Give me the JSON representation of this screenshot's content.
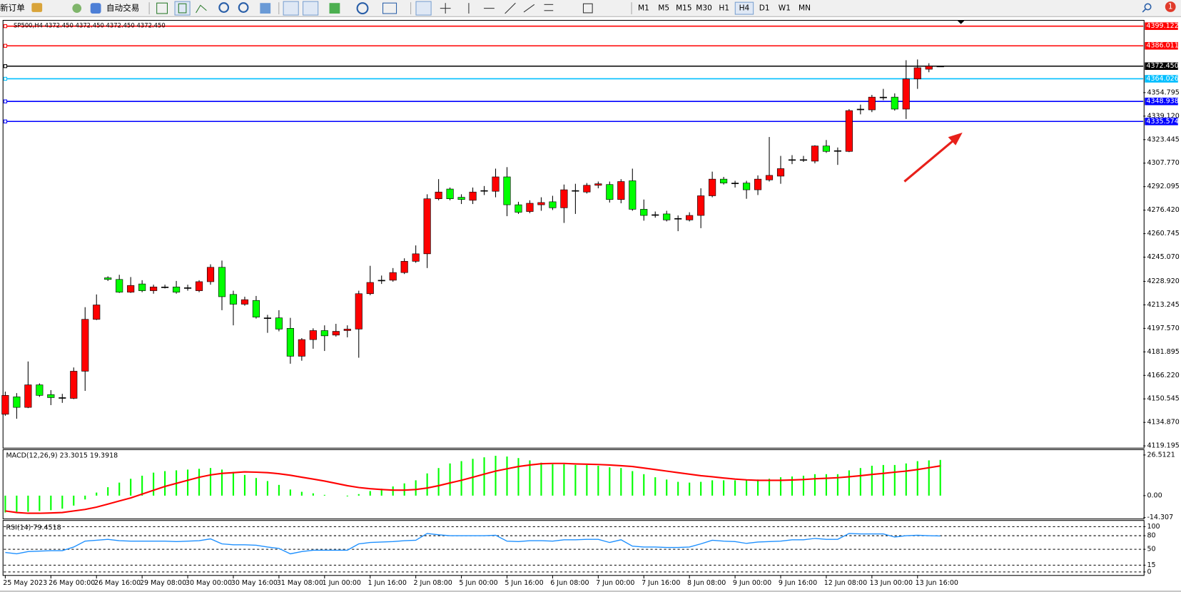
{
  "toolbar": {
    "new_order": "新订单",
    "auto_trading": "自动交易",
    "timeframes": [
      "M1",
      "M5",
      "M15",
      "M30",
      "H1",
      "H4",
      "D1",
      "W1",
      "MN"
    ],
    "active_timeframe": "H4",
    "notifications": 1
  },
  "chart_data": [
    {
      "type": "candlestick",
      "title": "SP500,H4  4372.450 4372.450 4372.450 4372.450",
      "categories": [
        "25 May 2023",
        null,
        null,
        null,
        "26 May 00:00",
        null,
        null,
        null,
        "26 May 16:00",
        null,
        null,
        null,
        "29 May 08:00",
        null,
        null,
        null,
        "30 May 00:00",
        null,
        null,
        null,
        "30 May 16:00",
        null,
        null,
        null,
        "31 May 08:00",
        null,
        null,
        null,
        "1 Jun 00:00",
        null,
        null,
        null,
        "1 Jun 16:00",
        null,
        null,
        null,
        "2 Jun 08:00",
        null,
        null,
        null,
        "5 Jun 00:00",
        null,
        null,
        null,
        "5 Jun 16:00",
        null,
        null,
        null,
        "6 Jun 08:00",
        null,
        null,
        null,
        "7 Jun 00:00",
        null,
        null,
        null,
        "7 Jun 16:00",
        null,
        null,
        null,
        "8 Jun 08:00",
        null,
        null,
        null,
        "9 Jun 00:00",
        null,
        null,
        null,
        "9 Jun 16:00",
        null,
        null,
        null,
        "12 Jun 08:00",
        null,
        null,
        null,
        "13 Jun 00:00",
        null,
        null,
        null,
        "13 Jun 16:00",
        null,
        null
      ],
      "open": [
        4140.3,
        4151.9,
        4144.9,
        4159.9,
        4153.4,
        4151.4,
        4150.9,
        4169.0,
        4203.6,
        4231.3,
        4230.2,
        4221.7,
        4227.2,
        4222.7,
        4225.2,
        4225.2,
        4224.7,
        4222.7,
        4228.7,
        4238.3,
        4220.2,
        4213.7,
        4216.2,
        4204.6,
        4204.6,
        4197.6,
        4179.0,
        4190.1,
        4196.1,
        4193.1,
        4196.1,
        4197.1,
        4220.7,
        4229.7,
        4229.7,
        4234.8,
        4242.3,
        4247.3,
        4284.0,
        4290.5,
        4285.0,
        4283.0,
        4289.5,
        4289.0,
        4298.6,
        4280.0,
        4275.5,
        4280.0,
        4282.0,
        4278.0,
        4289.5,
        4288.5,
        4293.0,
        4293.5,
        4283.5,
        4296.0,
        4277.0,
        4273.4,
        4273.9,
        4270.9,
        4269.9,
        4272.9,
        4286.0,
        4297.1,
        4294.5,
        4294.5,
        4290.0,
        4296.6,
        4299.1,
        4310.1,
        4310.1,
        4309.1,
        4319.2,
        4316.1,
        4315.6,
        4343.8,
        4343.3,
        4351.8,
        4351.8,
        4343.8,
        4363.9,
        4370.4,
        4372.45
      ],
      "high": [
        4155.4,
        4154.4,
        4175.5,
        4160.9,
        4156.4,
        4153.9,
        4171.5,
        4211.7,
        4220.2,
        4232.3,
        4233.3,
        4231.8,
        4229.7,
        4226.7,
        4226.7,
        4229.2,
        4226.7,
        4229.7,
        4240.3,
        4242.8,
        4222.7,
        4218.7,
        4219.2,
        4206.6,
        4209.7,
        4204.6,
        4191.1,
        4197.6,
        4199.6,
        4200.6,
        4199.6,
        4222.7,
        4239.3,
        4232.8,
        4237.8,
        4244.3,
        4252.9,
        4287.0,
        4297.1,
        4291.5,
        4287.0,
        4291.5,
        4292.5,
        4304.1,
        4305.1,
        4282.0,
        4283.0,
        4285.0,
        4286.0,
        4293.5,
        4294.0,
        4294.5,
        4295.5,
        4295.5,
        4297.1,
        4304.1,
        4283.5,
        4275.5,
        4276.0,
        4272.9,
        4275.0,
        4291.0,
        4302.1,
        4298.6,
        4296.0,
        4296.0,
        4299.6,
        4325.2,
        4312.6,
        4313.1,
        4312.6,
        4319.7,
        4323.2,
        4318.2,
        4343.8,
        4346.8,
        4353.3,
        4357.3,
        4354.3,
        4376.4,
        4376.9,
        4374.4,
        4372.45
      ],
      "low": [
        4139.3,
        4137.3,
        4144.4,
        4151.9,
        4146.4,
        4147.9,
        4150.4,
        4155.9,
        4203.1,
        4229.2,
        4221.2,
        4221.2,
        4221.7,
        4220.7,
        4224.2,
        4220.7,
        4222.7,
        4221.7,
        4226.7,
        4209.7,
        4199.6,
        4212.7,
        4204.1,
        4194.6,
        4195.6,
        4174.0,
        4176.0,
        4184.0,
        4182.5,
        4192.1,
        4191.6,
        4178.0,
        4219.7,
        4227.2,
        4228.7,
        4233.8,
        4241.3,
        4237.8,
        4283.0,
        4283.0,
        4280.5,
        4280.5,
        4286.5,
        4285.0,
        4272.4,
        4273.9,
        4274.4,
        4276.0,
        4276.5,
        4267.9,
        4273.9,
        4287.5,
        4291.0,
        4281.5,
        4281.0,
        4276.0,
        4269.4,
        4271.4,
        4268.9,
        4262.4,
        4268.9,
        4264.4,
        4285.0,
        4293.5,
        4291.5,
        4284.0,
        4286.5,
        4295.5,
        4294.0,
        4307.1,
        4308.6,
        4307.6,
        4314.6,
        4306.6,
        4315.1,
        4340.3,
        4341.8,
        4349.8,
        4342.8,
        4337.2,
        4357.3,
        4368.4,
        4372.45
      ],
      "close": [
        4152.9,
        4144.9,
        4159.9,
        4152.9,
        4151.4,
        4151.4,
        4169.0,
        4203.6,
        4213.2,
        4230.2,
        4221.7,
        4226.2,
        4222.7,
        4225.2,
        4225.2,
        4221.7,
        4224.7,
        4228.7,
        4238.3,
        4218.7,
        4213.7,
        4216.7,
        4205.1,
        4204.6,
        4197.1,
        4179.0,
        4190.1,
        4196.1,
        4192.6,
        4195.6,
        4197.1,
        4220.7,
        4228.2,
        4229.7,
        4234.8,
        4242.3,
        4247.3,
        4284.0,
        4288.5,
        4284.0,
        4283.5,
        4288.5,
        4289.5,
        4298.6,
        4280.0,
        4275.0,
        4281.0,
        4281.5,
        4278.0,
        4290.0,
        4289.5,
        4293.0,
        4294.0,
        4283.5,
        4295.5,
        4277.0,
        4272.9,
        4273.4,
        4269.9,
        4270.9,
        4272.9,
        4286.0,
        4297.1,
        4294.5,
        4294.5,
        4290.0,
        4297.1,
        4299.6,
        4304.1,
        4310.1,
        4310.1,
        4319.2,
        4315.6,
        4316.1,
        4342.8,
        4343.8,
        4351.8,
        4351.8,
        4343.8,
        4363.9,
        4371.4,
        4372.4,
        4372.45
      ],
      "up_color": "#ff0000",
      "down_color": "#00ff00",
      "doji_color": "#000000",
      "ylim": [
        4117.7,
        4402.5
      ],
      "yticks": [
        4119.195,
        {
          "value": 4134.87,
          "label": "4134.870"
        },
        4150.545,
        {
          "value": 4166.22,
          "label": "4166.220"
        },
        4181.895,
        {
          "value": 4197.57,
          "label": "4197.570"
        },
        4213.245,
        {
          "value": 4228.92,
          "label": "4228.920"
        },
        {
          "value": 4245.07,
          "label": "4245.070"
        },
        4260.745,
        {
          "value": 4276.42,
          "label": "4276.420"
        },
        4292.095,
        {
          "value": 4307.77,
          "label": "4307.770"
        },
        4323.445,
        {
          "value": 4339.12,
          "label": "4339.120"
        },
        4354.795
      ],
      "hlines": [
        {
          "value": 4399.122,
          "color": "#ff0000"
        },
        {
          "value": 4386.011,
          "color": "#ff0000"
        },
        {
          "value": 4372.45,
          "label": "4372.450",
          "color": "#000000"
        },
        {
          "value": 4364.026,
          "color": "#00bfff"
        },
        {
          "value": 4348.938,
          "color": "#0000ff"
        },
        {
          "value": 4335.574,
          "color": "#0000ff"
        }
      ]
    },
    {
      "type": "macd",
      "title": "MACD(12,26,9) 23.3015 19.3918",
      "series": [
        {
          "color": "#00ff00",
          "values": [
            -11,
            -10.5,
            -10.5,
            -10,
            -9.5,
            -8.5,
            -6.5,
            -2.5,
            2,
            5.5,
            8.5,
            11,
            13,
            15,
            16,
            16.5,
            17,
            17.5,
            18,
            17,
            15.5,
            13.5,
            11.5,
            9.5,
            7,
            4,
            2.5,
            1.5,
            0.5,
            0,
            -0.5,
            1,
            3,
            4.5,
            6,
            8,
            10,
            14.5,
            18,
            21,
            22.5,
            24,
            25,
            26,
            25.5,
            24.5,
            23,
            21.5,
            20.5,
            20.5,
            20,
            20,
            19.5,
            18.5,
            18,
            16,
            14,
            12,
            10.5,
            9,
            8.5,
            9,
            10,
            10,
            10,
            10,
            10.5,
            11,
            12,
            12.5,
            13,
            14,
            14,
            14,
            16.5,
            18,
            19.5,
            20,
            20,
            21,
            22.5,
            23,
            23.3015
          ]
        },
        {
          "color": "#ff0000",
          "values": [
            -10,
            -11,
            -11.5,
            -11.5,
            -11.3,
            -11,
            -10,
            -9,
            -7.5,
            -5.5,
            -3.5,
            -1.5,
            1,
            3.5,
            6,
            8,
            10,
            12,
            13.5,
            14.5,
            15,
            15.5,
            15.3,
            15,
            14.3,
            13.3,
            12,
            10.8,
            9.5,
            8,
            6.5,
            5.3,
            4.5,
            4,
            3.6,
            3.6,
            4,
            5,
            6.5,
            8.3,
            10,
            12,
            14,
            16,
            17.5,
            19,
            20,
            20.8,
            21,
            21,
            20.7,
            20.5,
            20.3,
            20,
            19.5,
            19,
            18,
            17,
            16,
            15,
            14,
            13,
            12.3,
            11.5,
            10.8,
            10.3,
            10,
            10,
            10,
            10.2,
            10.5,
            11,
            11.3,
            11.7,
            12.3,
            13,
            13.8,
            14.5,
            15.3,
            16,
            17,
            18.2,
            19.3918
          ]
        }
      ],
      "ylim": [
        -15.2,
        29.5
      ],
      "yticks": [
        26.5121,
        {
          "value": 0,
          "label": "0.00"
        },
        -14.307
      ]
    },
    {
      "type": "line",
      "title": "RSI(14) 79.4518",
      "series": [
        {
          "color": "#1e90ff",
          "values": [
            43,
            40,
            45,
            46,
            47,
            47,
            55,
            68,
            70,
            72,
            69,
            68,
            68,
            68,
            68,
            67,
            68,
            69,
            73,
            62,
            60,
            60,
            59,
            55,
            52,
            40,
            45,
            48,
            48,
            48,
            48,
            62,
            65,
            66,
            67,
            69,
            70,
            85,
            82,
            80,
            80,
            80,
            80,
            81,
            68,
            67,
            69,
            69,
            68,
            71,
            71,
            72,
            72,
            65,
            71,
            57,
            55,
            55,
            54,
            54,
            55,
            62,
            70,
            68,
            67,
            63,
            66,
            67,
            68,
            71,
            71,
            74,
            72,
            72,
            85,
            84,
            84,
            84,
            77,
            80,
            81,
            80,
            79.4518
          ]
        }
      ],
      "ylim": [
        -6,
        112
      ],
      "yticks": [
        100,
        80,
        50,
        15,
        0
      ],
      "grid": true
    }
  ]
}
